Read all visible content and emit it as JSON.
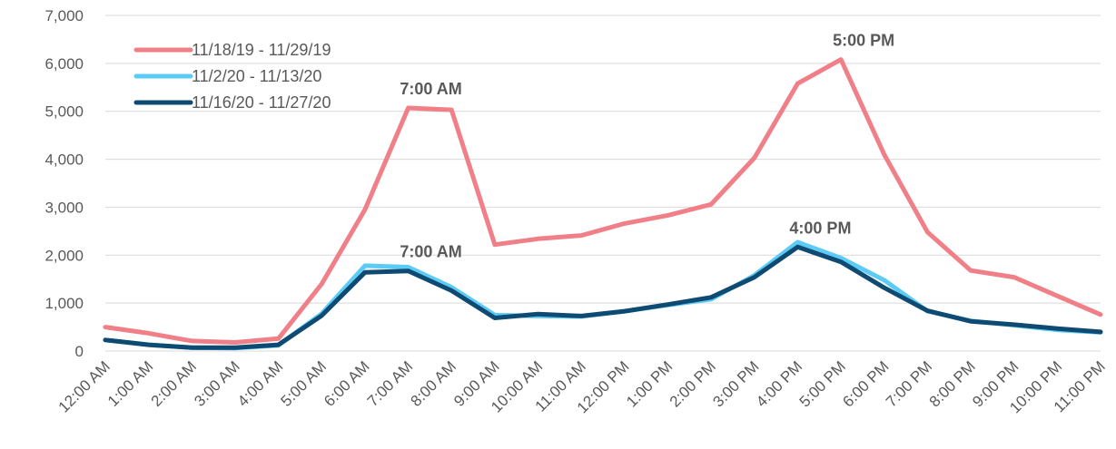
{
  "chart_data": {
    "type": "line",
    "categories": [
      "12:00 AM",
      "1:00 AM",
      "2:00 AM",
      "3:00 AM",
      "4:00 AM",
      "5:00 AM",
      "6:00 AM",
      "7:00 AM",
      "8:00 AM",
      "9:00 AM",
      "10:00 AM",
      "11:00 AM",
      "12:00 PM",
      "1:00 PM",
      "2:00 PM",
      "3:00 PM",
      "4:00 PM",
      "5:00 PM",
      "6:00 PM",
      "7:00 PM",
      "8:00 PM",
      "9:00 PM",
      "10:00 PM",
      "11:00 PM"
    ],
    "ylim": [
      0,
      7000
    ],
    "yticks": [
      0,
      1000,
      2000,
      3000,
      4000,
      5000,
      6000,
      7000
    ],
    "ytick_labels": [
      "0",
      "1,000",
      "2,000",
      "3,000",
      "4,000",
      "5,000",
      "6,000",
      "7,000"
    ],
    "grid": true,
    "legend_position": "top-left",
    "series": [
      {
        "name": "11/18/19 - 11/29/19",
        "color": "#f07f87",
        "values": [
          500,
          370,
          210,
          180,
          260,
          1400,
          2950,
          5070,
          5030,
          2220,
          2340,
          2410,
          2660,
          2830,
          3060,
          4030,
          5580,
          6080,
          4100,
          2480,
          1680,
          1540,
          1150,
          760
        ]
      },
      {
        "name": "11/2/20 - 11/13/20",
        "color": "#5ccbf5",
        "values": [
          230,
          130,
          70,
          60,
          120,
          780,
          1780,
          1750,
          1330,
          750,
          730,
          720,
          830,
          960,
          1080,
          1580,
          2270,
          1940,
          1480,
          830,
          630,
          540,
          440,
          390
        ]
      },
      {
        "name": "11/16/20 - 11/27/20",
        "color": "#0e4a72",
        "values": [
          230,
          130,
          70,
          70,
          130,
          740,
          1640,
          1670,
          1260,
          690,
          770,
          730,
          830,
          970,
          1120,
          1540,
          2170,
          1860,
          1320,
          840,
          620,
          550,
          470,
          400
        ]
      }
    ],
    "annotations": [
      {
        "text": "7:00 AM",
        "series": 0,
        "index": 7
      },
      {
        "text": "5:00 PM",
        "series": 0,
        "index": 17
      },
      {
        "text": "7:00 AM",
        "series": 2,
        "index": 7
      },
      {
        "text": "4:00 PM",
        "series": 2,
        "index": 16
      }
    ]
  }
}
